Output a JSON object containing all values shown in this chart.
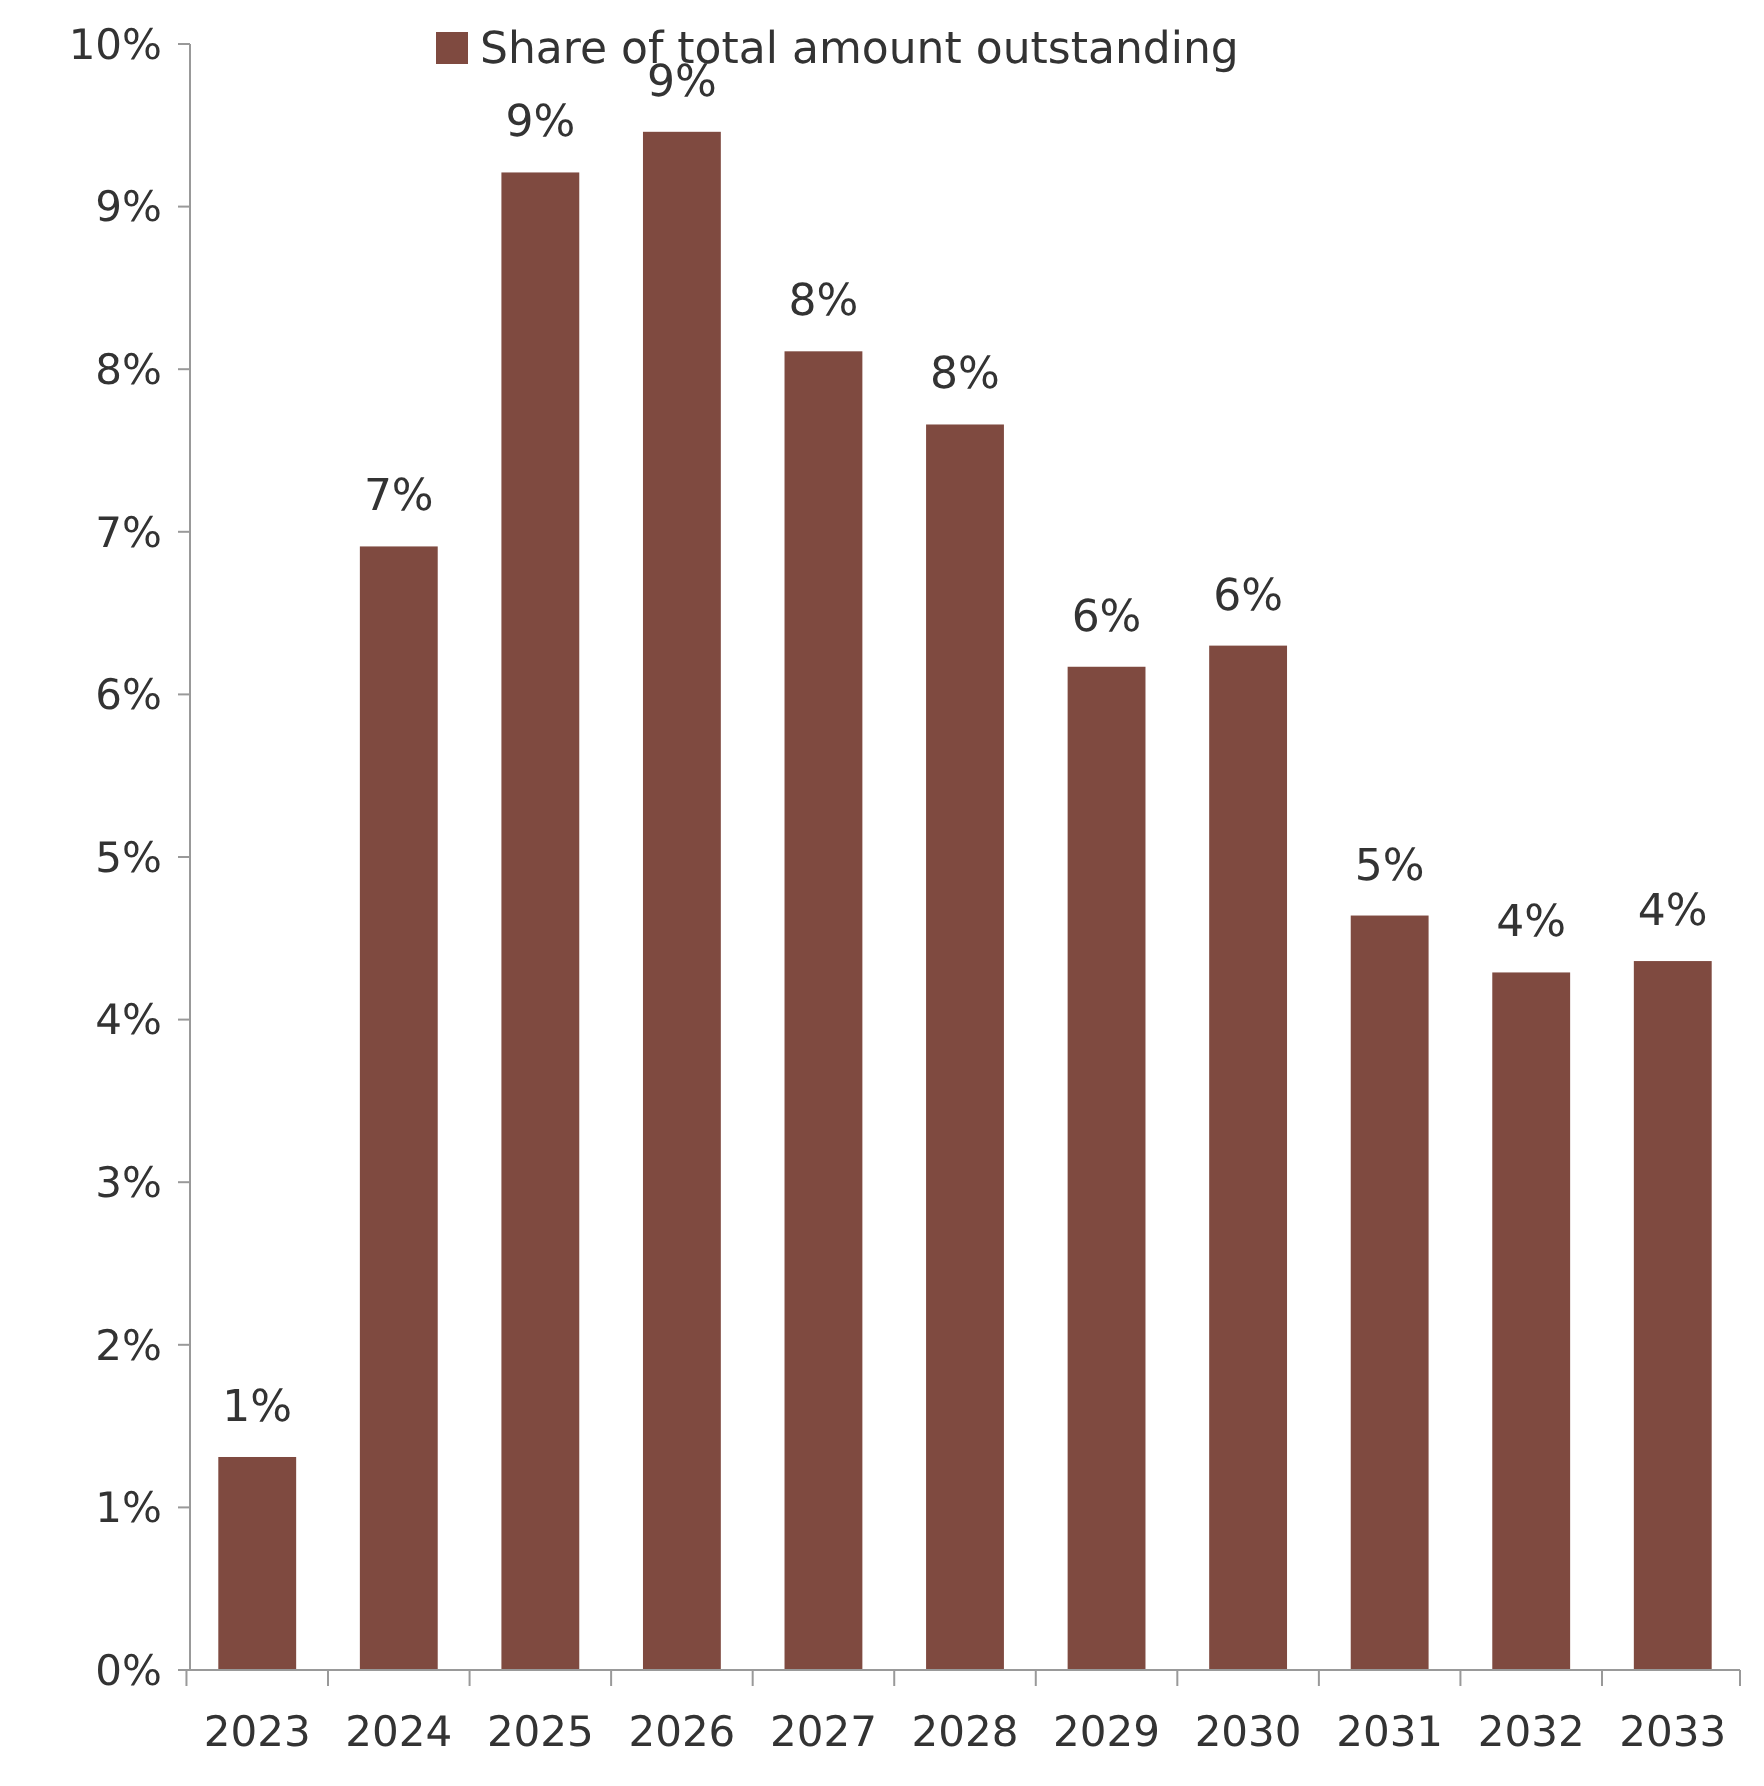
{
  "chart_data": {
    "type": "bar",
    "categories": [
      "2023",
      "2024",
      "2025",
      "2026",
      "2027",
      "2028",
      "2029",
      "2030",
      "2031",
      "2032",
      "2033"
    ],
    "series": [
      {
        "name": "Share of total amount outstanding",
        "color": "#7f4a40",
        "values": [
          1.31,
          6.91,
          9.21,
          9.46,
          8.11,
          7.66,
          6.17,
          6.3,
          4.64,
          4.29,
          4.36
        ],
        "value_labels": [
          "1%",
          "7%",
          "9%",
          "9%",
          "8%",
          "8%",
          "6%",
          "6%",
          "5%",
          "4%",
          "4%"
        ]
      }
    ],
    "ylim": [
      0,
      10
    ],
    "yticks": [
      {
        "value": 0,
        "label": "0%"
      },
      {
        "value": 1,
        "label": "1%"
      },
      {
        "value": 2,
        "label": "2%"
      },
      {
        "value": 3,
        "label": "3%"
      },
      {
        "value": 4,
        "label": "4%"
      },
      {
        "value": 5,
        "label": "5%"
      },
      {
        "value": 6,
        "label": "6%"
      },
      {
        "value": 7,
        "label": "7%"
      },
      {
        "value": 8,
        "label": "8%"
      },
      {
        "value": 9,
        "label": "9%"
      },
      {
        "value": 10,
        "label": "10%"
      }
    ],
    "grid": false,
    "legend": "top"
  }
}
